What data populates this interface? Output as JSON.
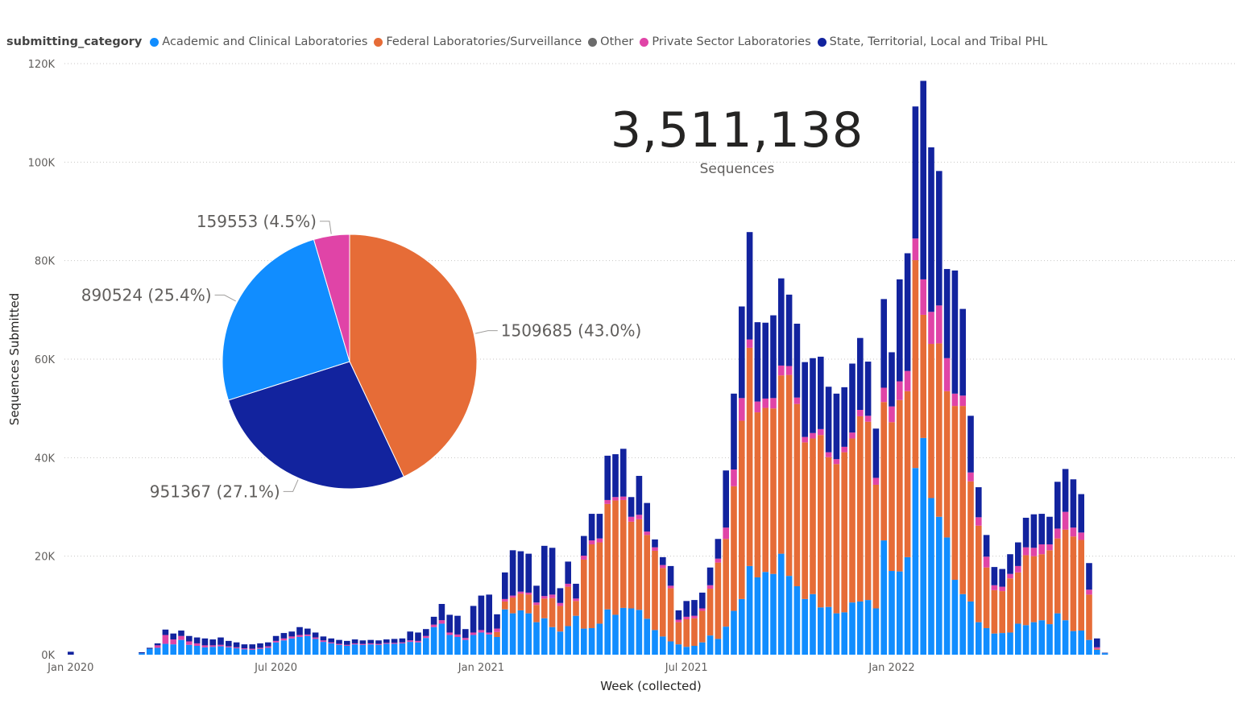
{
  "legend": {
    "title": "submitting_category",
    "items": [
      {
        "label": "Academic and Clinical Laboratories",
        "color": "#118DFF"
      },
      {
        "label": "Federal Laboratories/Surveillance",
        "color": "#E66C37"
      },
      {
        "label": "Other",
        "color": "#6B6B6B"
      },
      {
        "label": "Private Sector Laboratories",
        "color": "#E044A7"
      },
      {
        "label": "State, Territorial, Local and Tribal PHL",
        "color": "#12239E"
      }
    ]
  },
  "kpi": {
    "value": "3,511,138",
    "label": "Sequences"
  },
  "chart_data": [
    {
      "type": "bar",
      "stacked": true,
      "xlabel": "Week (collected)",
      "ylabel": "Sequences Submitted",
      "ylim": [
        0,
        120000
      ],
      "y_ticks": [
        {
          "value": 0,
          "label": "0K"
        },
        {
          "value": 20000,
          "label": "20K"
        },
        {
          "value": 40000,
          "label": "40K"
        },
        {
          "value": 60000,
          "label": "60K"
        },
        {
          "value": 80000,
          "label": "80K"
        },
        {
          "value": 100000,
          "label": "100K"
        },
        {
          "value": 120000,
          "label": "120K"
        }
      ],
      "x_ticks": [
        {
          "week": 0,
          "label": "Jan 2020"
        },
        {
          "week": 26,
          "label": "Jul 2020"
        },
        {
          "week": 52,
          "label": "Jan 2021"
        },
        {
          "week": 78,
          "label": "Jul 2021"
        },
        {
          "week": 104,
          "label": "Jan 2022"
        }
      ],
      "grid": true,
      "legend_position": "top-left",
      "series_colors": {
        "academic": "#118DFF",
        "federal": "#E66C37",
        "private": "#E044A7",
        "state": "#12239E"
      },
      "weeks": [
        {
          "w": 0,
          "a": 0,
          "f": 0,
          "p": 0,
          "s": 600
        },
        {
          "w": 9,
          "a": 300,
          "f": 0,
          "p": 0,
          "s": 200
        },
        {
          "w": 10,
          "a": 1200,
          "f": 0,
          "p": 0,
          "s": 200
        },
        {
          "w": 11,
          "a": 1400,
          "f": 0,
          "p": 500,
          "s": 400
        },
        {
          "w": 12,
          "a": 2200,
          "f": 0,
          "p": 1800,
          "s": 1100
        },
        {
          "w": 13,
          "a": 2100,
          "f": 0,
          "p": 1000,
          "s": 1200
        },
        {
          "w": 14,
          "a": 3000,
          "f": 0,
          "p": 800,
          "s": 1100
        },
        {
          "w": 15,
          "a": 2000,
          "f": 0,
          "p": 700,
          "s": 1100
        },
        {
          "w": 16,
          "a": 1800,
          "f": 0,
          "p": 500,
          "s": 1200
        },
        {
          "w": 17,
          "a": 1500,
          "f": 0,
          "p": 400,
          "s": 1400
        },
        {
          "w": 18,
          "a": 1600,
          "f": 0,
          "p": 300,
          "s": 1200
        },
        {
          "w": 19,
          "a": 1700,
          "f": 0,
          "p": 300,
          "s": 1500
        },
        {
          "w": 20,
          "a": 1500,
          "f": 0,
          "p": 200,
          "s": 1100
        },
        {
          "w": 21,
          "a": 1300,
          "f": 0,
          "p": 200,
          "s": 1000
        },
        {
          "w": 22,
          "a": 1100,
          "f": 0,
          "p": 200,
          "s": 800
        },
        {
          "w": 23,
          "a": 1000,
          "f": 0,
          "p": 200,
          "s": 900
        },
        {
          "w": 24,
          "a": 1200,
          "f": 0,
          "p": 200,
          "s": 900
        },
        {
          "w": 25,
          "a": 1400,
          "f": 0,
          "p": 300,
          "s": 800
        },
        {
          "w": 26,
          "a": 2500,
          "f": 0,
          "p": 300,
          "s": 1000
        },
        {
          "w": 27,
          "a": 2900,
          "f": 0,
          "p": 400,
          "s": 1100
        },
        {
          "w": 28,
          "a": 3300,
          "f": 0,
          "p": 400,
          "s": 1000
        },
        {
          "w": 29,
          "a": 3600,
          "f": 0,
          "p": 400,
          "s": 1600
        },
        {
          "w": 30,
          "a": 3800,
          "f": 0,
          "p": 300,
          "s": 1200
        },
        {
          "w": 31,
          "a": 3200,
          "f": 0,
          "p": 300,
          "s": 1000
        },
        {
          "w": 32,
          "a": 2600,
          "f": 0,
          "p": 300,
          "s": 800
        },
        {
          "w": 33,
          "a": 2300,
          "f": 0,
          "p": 200,
          "s": 800
        },
        {
          "w": 34,
          "a": 2000,
          "f": 0,
          "p": 200,
          "s": 800
        },
        {
          "w": 35,
          "a": 1800,
          "f": 0,
          "p": 200,
          "s": 800
        },
        {
          "w": 36,
          "a": 2100,
          "f": 0,
          "p": 200,
          "s": 800
        },
        {
          "w": 37,
          "a": 2000,
          "f": 0,
          "p": 200,
          "s": 700
        },
        {
          "w": 38,
          "a": 2100,
          "f": 0,
          "p": 200,
          "s": 700
        },
        {
          "w": 39,
          "a": 2000,
          "f": 0,
          "p": 200,
          "s": 700
        },
        {
          "w": 40,
          "a": 2200,
          "f": 0,
          "p": 200,
          "s": 700
        },
        {
          "w": 41,
          "a": 2200,
          "f": 0,
          "p": 200,
          "s": 800
        },
        {
          "w": 42,
          "a": 2300,
          "f": 0,
          "p": 200,
          "s": 800
        },
        {
          "w": 43,
          "a": 2600,
          "f": 0,
          "p": 300,
          "s": 1800
        },
        {
          "w": 44,
          "a": 2500,
          "f": 0,
          "p": 300,
          "s": 1700
        },
        {
          "w": 45,
          "a": 3400,
          "f": 0,
          "p": 400,
          "s": 1400
        },
        {
          "w": 46,
          "a": 5600,
          "f": 0,
          "p": 500,
          "s": 1600
        },
        {
          "w": 47,
          "a": 6300,
          "f": 0,
          "p": 700,
          "s": 3300
        },
        {
          "w": 48,
          "a": 4000,
          "f": 0,
          "p": 500,
          "s": 3600
        },
        {
          "w": 49,
          "a": 3600,
          "f": 0,
          "p": 500,
          "s": 3800
        },
        {
          "w": 50,
          "a": 3000,
          "f": 0,
          "p": 400,
          "s": 1800
        },
        {
          "w": 51,
          "a": 4000,
          "f": 0,
          "p": 500,
          "s": 5400
        },
        {
          "w": 52,
          "a": 4500,
          "f": 0,
          "p": 500,
          "s": 7000
        },
        {
          "w": 53,
          "a": 4100,
          "f": 0,
          "p": 400,
          "s": 7700
        },
        {
          "w": 54,
          "a": 3600,
          "f": 1000,
          "p": 700,
          "s": 2900
        },
        {
          "w": 55,
          "a": 9200,
          "f": 1600,
          "p": 500,
          "s": 5400
        },
        {
          "w": 56,
          "a": 8400,
          "f": 3200,
          "p": 400,
          "s": 9200
        },
        {
          "w": 57,
          "a": 9000,
          "f": 3400,
          "p": 400,
          "s": 8200
        },
        {
          "w": 58,
          "a": 8400,
          "f": 3800,
          "p": 400,
          "s": 7900
        },
        {
          "w": 59,
          "a": 6600,
          "f": 3500,
          "p": 500,
          "s": 3400
        },
        {
          "w": 60,
          "a": 7400,
          "f": 4000,
          "p": 500,
          "s": 10200
        },
        {
          "w": 61,
          "a": 5600,
          "f": 5900,
          "p": 700,
          "s": 9500
        },
        {
          "w": 62,
          "a": 4700,
          "f": 5200,
          "p": 600,
          "s": 3000
        },
        {
          "w": 63,
          "a": 5800,
          "f": 8000,
          "p": 600,
          "s": 4500
        },
        {
          "w": 64,
          "a": 7900,
          "f": 3000,
          "p": 500,
          "s": 3000
        },
        {
          "w": 65,
          "a": 5300,
          "f": 14000,
          "p": 800,
          "s": 4000
        },
        {
          "w": 66,
          "a": 5400,
          "f": 17000,
          "p": 800,
          "s": 5400
        },
        {
          "w": 67,
          "a": 6300,
          "f": 16500,
          "p": 800,
          "s": 5000
        },
        {
          "w": 68,
          "a": 9200,
          "f": 21400,
          "p": 800,
          "s": 9000
        },
        {
          "w": 69,
          "a": 8100,
          "f": 23200,
          "p": 700,
          "s": 8700
        },
        {
          "w": 70,
          "a": 9500,
          "f": 21900,
          "p": 700,
          "s": 9700
        },
        {
          "w": 71,
          "a": 9400,
          "f": 17600,
          "p": 1000,
          "s": 4000
        },
        {
          "w": 72,
          "a": 9100,
          "f": 18400,
          "p": 900,
          "s": 7900
        },
        {
          "w": 73,
          "a": 7300,
          "f": 17000,
          "p": 700,
          "s": 5800
        },
        {
          "w": 74,
          "a": 5000,
          "f": 16100,
          "p": 700,
          "s": 1600
        },
        {
          "w": 75,
          "a": 3700,
          "f": 13900,
          "p": 600,
          "s": 1600
        },
        {
          "w": 76,
          "a": 2700,
          "f": 10800,
          "p": 500,
          "s": 4000
        },
        {
          "w": 77,
          "a": 2100,
          "f": 4500,
          "p": 500,
          "s": 1900
        },
        {
          "w": 78,
          "a": 1600,
          "f": 5600,
          "p": 500,
          "s": 3200
        },
        {
          "w": 79,
          "a": 1800,
          "f": 5600,
          "p": 500,
          "s": 3200
        },
        {
          "w": 80,
          "a": 2500,
          "f": 6400,
          "p": 500,
          "s": 3200
        },
        {
          "w": 81,
          "a": 3900,
          "f": 9500,
          "p": 700,
          "s": 3600
        },
        {
          "w": 82,
          "a": 3200,
          "f": 15500,
          "p": 800,
          "s": 4000
        },
        {
          "w": 83,
          "a": 5700,
          "f": 17800,
          "p": 2300,
          "s": 11600
        },
        {
          "w": 84,
          "a": 8900,
          "f": 25300,
          "p": 3400,
          "s": 15400
        },
        {
          "w": 85,
          "a": 11300,
          "f": 36200,
          "p": 4600,
          "s": 18600
        },
        {
          "w": 86,
          "a": 18000,
          "f": 44300,
          "p": 1700,
          "s": 21800
        },
        {
          "w": 87,
          "a": 15700,
          "f": 33500,
          "p": 2200,
          "s": 16100
        },
        {
          "w": 88,
          "a": 16800,
          "f": 33300,
          "p": 1900,
          "s": 15400
        },
        {
          "w": 89,
          "a": 16400,
          "f": 33600,
          "p": 2100,
          "s": 16800
        },
        {
          "w": 90,
          "a": 20500,
          "f": 36200,
          "p": 2000,
          "s": 17700
        },
        {
          "w": 91,
          "a": 16000,
          "f": 40800,
          "p": 1800,
          "s": 14500
        },
        {
          "w": 92,
          "a": 13900,
          "f": 37000,
          "p": 1300,
          "s": 15000
        },
        {
          "w": 93,
          "a": 11300,
          "f": 31800,
          "p": 1100,
          "s": 15200
        },
        {
          "w": 94,
          "a": 12300,
          "f": 31600,
          "p": 1100,
          "s": 15200
        },
        {
          "w": 95,
          "a": 9600,
          "f": 35000,
          "p": 1200,
          "s": 14700
        },
        {
          "w": 96,
          "a": 9700,
          "f": 30400,
          "p": 1000,
          "s": 13300
        },
        {
          "w": 97,
          "a": 8400,
          "f": 30300,
          "p": 1000,
          "s": 13300
        },
        {
          "w": 98,
          "a": 8600,
          "f": 32500,
          "p": 1100,
          "s": 12100
        },
        {
          "w": 99,
          "a": 10600,
          "f": 33300,
          "p": 1200,
          "s": 14000
        },
        {
          "w": 100,
          "a": 10800,
          "f": 37600,
          "p": 1300,
          "s": 14600
        },
        {
          "w": 101,
          "a": 11100,
          "f": 36200,
          "p": 1200,
          "s": 11000
        },
        {
          "w": 102,
          "a": 9400,
          "f": 25100,
          "p": 1400,
          "s": 10000
        },
        {
          "w": 103,
          "a": 23200,
          "f": 28100,
          "p": 2900,
          "s": 18000
        },
        {
          "w": 104,
          "a": 17000,
          "f": 30200,
          "p": 3200,
          "s": 11000
        },
        {
          "w": 105,
          "a": 16900,
          "f": 34800,
          "p": 3800,
          "s": 20700
        },
        {
          "w": 106,
          "a": 19800,
          "f": 33700,
          "p": 4100,
          "s": 23900
        },
        {
          "w": 107,
          "a": 37900,
          "f": 42200,
          "p": 4400,
          "s": 26800
        },
        {
          "w": 108,
          "a": 44000,
          "f": 25000,
          "p": 7200,
          "s": 40300
        },
        {
          "w": 109,
          "a": 31800,
          "f": 31300,
          "p": 6500,
          "s": 33400
        },
        {
          "w": 110,
          "a": 28000,
          "f": 35200,
          "p": 7700,
          "s": 27300
        },
        {
          "w": 111,
          "a": 23800,
          "f": 29700,
          "p": 6700,
          "s": 18100
        },
        {
          "w": 112,
          "a": 15200,
          "f": 35300,
          "p": 2500,
          "s": 25000
        },
        {
          "w": 113,
          "a": 12300,
          "f": 38200,
          "p": 2100,
          "s": 17600
        },
        {
          "w": 114,
          "a": 10800,
          "f": 24400,
          "p": 1800,
          "s": 11500
        },
        {
          "w": 115,
          "a": 6600,
          "f": 19600,
          "p": 1700,
          "s": 6100
        },
        {
          "w": 116,
          "a": 5400,
          "f": 12300,
          "p": 2200,
          "s": 4400
        },
        {
          "w": 117,
          "a": 4300,
          "f": 8800,
          "p": 1000,
          "s": 3700
        },
        {
          "w": 118,
          "a": 4400,
          "f": 8500,
          "p": 900,
          "s": 3600
        },
        {
          "w": 119,
          "a": 4500,
          "f": 11000,
          "p": 900,
          "s": 4000
        },
        {
          "w": 120,
          "a": 6300,
          "f": 10400,
          "p": 1300,
          "s": 4800
        },
        {
          "w": 121,
          "a": 6000,
          "f": 14200,
          "p": 1600,
          "s": 6000
        },
        {
          "w": 122,
          "a": 6600,
          "f": 13400,
          "p": 1700,
          "s": 6800
        },
        {
          "w": 123,
          "a": 7000,
          "f": 13400,
          "p": 2000,
          "s": 6200
        },
        {
          "w": 124,
          "a": 6200,
          "f": 15000,
          "p": 1200,
          "s": 5600
        },
        {
          "w": 125,
          "a": 8400,
          "f": 15200,
          "p": 2000,
          "s": 9500
        },
        {
          "w": 126,
          "a": 7000,
          "f": 18400,
          "p": 3600,
          "s": 8700
        },
        {
          "w": 127,
          "a": 4800,
          "f": 19200,
          "p": 1800,
          "s": 9800
        },
        {
          "w": 128,
          "a": 4900,
          "f": 18400,
          "p": 1500,
          "s": 7800
        },
        {
          "w": 129,
          "a": 3000,
          "f": 9200,
          "p": 1000,
          "s": 5400
        },
        {
          "w": 130,
          "a": 1000,
          "f": 200,
          "p": 300,
          "s": 1800
        },
        {
          "w": 131,
          "a": 300,
          "f": 0,
          "p": 0,
          "s": 100
        }
      ]
    },
    {
      "type": "pie",
      "slices": [
        {
          "label": "1509685 (43.0%)",
          "value": 1509685,
          "color": "#E66C37"
        },
        {
          "label": "951367 (27.1%)",
          "value": 951367,
          "color": "#12239E"
        },
        {
          "label": "890524 (25.4%)",
          "value": 890524,
          "color": "#118DFF"
        },
        {
          "label": "159553 (4.5%)",
          "value": 159553,
          "color": "#E044A7"
        }
      ]
    }
  ]
}
